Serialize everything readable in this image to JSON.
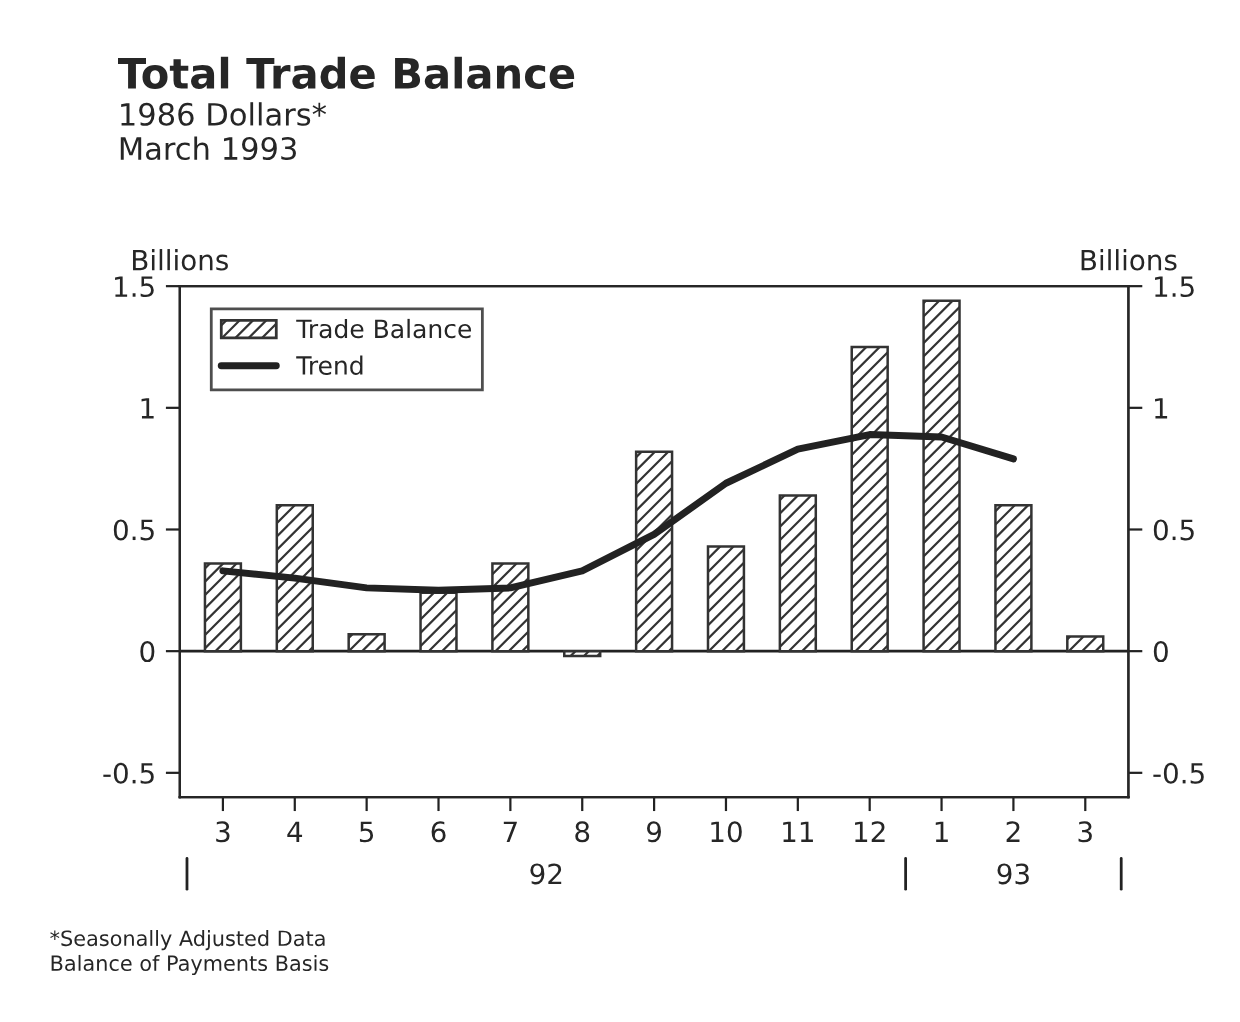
{
  "chart_data": {
    "type": "bar",
    "title": "Total Trade Balance",
    "subtitle": "1986 Dollars*\nMarch 1993",
    "ylabel": "Billions",
    "y2label": "Billions",
    "categories": [
      "3",
      "4",
      "5",
      "6",
      "7",
      "8",
      "9",
      "10",
      "11",
      "12",
      "1",
      "2",
      "3"
    ],
    "series": [
      {
        "name": "Trade Balance",
        "color": "#333333",
        "values": [
          0.36,
          0.6,
          0.07,
          0.24,
          0.36,
          -0.02,
          0.82,
          0.43,
          0.64,
          1.25,
          1.44,
          0.6,
          0.06
        ]
      },
      {
        "name": "Trend",
        "type": "line",
        "color": "#222222",
        "values": [
          0.33,
          0.3,
          0.26,
          0.25,
          0.26,
          0.33,
          0.48,
          0.69,
          0.83,
          0.89,
          0.88,
          0.79,
          null
        ]
      }
    ],
    "ylim": [
      -0.6,
      1.5
    ],
    "yticks": [
      -0.5,
      0,
      0.5,
      1,
      1.5
    ],
    "y2lim": [
      -0.6,
      1.5
    ],
    "y2ticks": [
      -0.5,
      0,
      0.5,
      1,
      1.5
    ],
    "legend": "top left",
    "ref_lines": [
      {
        "axis": "y",
        "value": 0
      }
    ],
    "grid": false,
    "annotations": [
      "92",
      "93",
      "*Seasonally Adjusted Data\nBalance of Payments Basis"
    ]
  }
}
